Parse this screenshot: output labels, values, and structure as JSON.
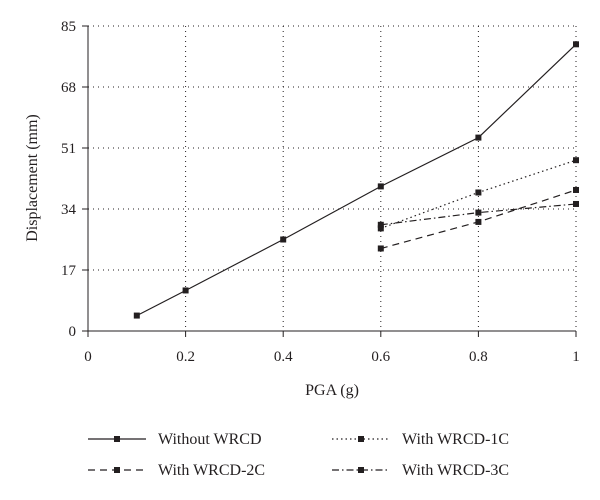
{
  "chart_data": {
    "type": "line",
    "title": "",
    "xlabel": "PGA (g)",
    "ylabel": "Displacement (mm)",
    "xlim": [
      0,
      1
    ],
    "ylim": [
      0,
      85
    ],
    "xticks": [
      0,
      0.2,
      0.4,
      0.6,
      0.8,
      1
    ],
    "xtick_labels": [
      "0",
      "0.2",
      "0.4",
      "0.6",
      "0.8",
      "1"
    ],
    "yticks": [
      0,
      17,
      34,
      51,
      68,
      85
    ],
    "ytick_labels": [
      "0",
      "17",
      "34",
      "51",
      "68",
      "85"
    ],
    "grid": "dotted",
    "legend_position": "bottom",
    "series": [
      {
        "name": "Without WRCD",
        "style": "solid",
        "x": [
          0.1,
          0.2,
          0.4,
          0.6,
          0.8,
          1.0
        ],
        "y": [
          4.3,
          11.3,
          25.5,
          40.3,
          53.9,
          79.9
        ]
      },
      {
        "name": "With WRCD-1C",
        "style": "dotted",
        "x": [
          0.6,
          0.8,
          1.0
        ],
        "y": [
          28.6,
          38.6,
          47.6
        ]
      },
      {
        "name": "With WRCD-2C",
        "style": "dashed",
        "x": [
          0.6,
          0.8,
          1.0
        ],
        "y": [
          23.0,
          30.4,
          39.3
        ]
      },
      {
        "name": "With WRCD-3C",
        "style": "dashdot",
        "x": [
          0.6,
          0.8,
          1.0
        ],
        "y": [
          29.6,
          33.0,
          35.4
        ]
      }
    ]
  }
}
